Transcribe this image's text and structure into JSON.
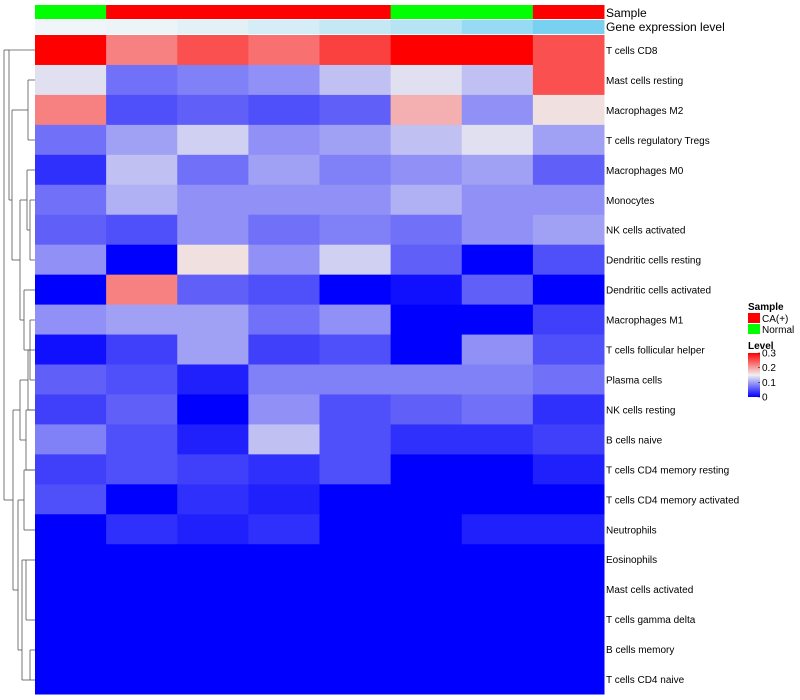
{
  "chart_data": {
    "type": "heatmap",
    "track_labels": [
      "Sample",
      "Gene expression level"
    ],
    "sample_groups": [
      "Normal",
      "CA(+)",
      "CA(+)",
      "CA(+)",
      "CA(+)",
      "Normal",
      "Normal",
      "CA(+)"
    ],
    "gene_expression": [
      0.02,
      0.04,
      0.1,
      0.2,
      0.3,
      0.4,
      0.6,
      0.8
    ],
    "gene_expression_colors": {
      "low": "#f2f6f8",
      "high": "#5bc8ef"
    },
    "rows": [
      "T cells CD8",
      "Mast cells resting",
      "Macrophages M2",
      "T cells regulatory  Tregs",
      "Macrophages M0",
      "Monocytes",
      "NK cells activated",
      "Dendritic cells resting",
      "Dendritic cells activated",
      "Macrophages M1",
      "T cells follicular helper",
      "Plasma cells",
      "NK cells resting",
      "B cells naive",
      "T cells CD4 memory resting",
      "T cells CD4 memory activated",
      "Neutrophils",
      "Eosinophils",
      "Mast cells activated",
      "T cells gamma delta",
      "B cells memory",
      "T cells CD4 naive"
    ],
    "values": [
      [
        0.3,
        0.22,
        0.25,
        0.23,
        0.26,
        0.3,
        0.3,
        0.25
      ],
      [
        0.14,
        0.07,
        0.08,
        0.09,
        0.12,
        0.14,
        0.12,
        0.25
      ],
      [
        0.22,
        0.05,
        0.06,
        0.05,
        0.06,
        0.19,
        0.09,
        0.16
      ],
      [
        0.07,
        0.1,
        0.13,
        0.09,
        0.1,
        0.12,
        0.14,
        0.1
      ],
      [
        0.03,
        0.12,
        0.07,
        0.1,
        0.08,
        0.09,
        0.1,
        0.06
      ],
      [
        0.07,
        0.11,
        0.09,
        0.09,
        0.09,
        0.11,
        0.09,
        0.09
      ],
      [
        0.06,
        0.05,
        0.09,
        0.07,
        0.08,
        0.07,
        0.09,
        0.1
      ],
      [
        0.09,
        0.0,
        0.16,
        0.09,
        0.13,
        0.06,
        0.0,
        0.05
      ],
      [
        0.0,
        0.22,
        0.06,
        0.05,
        0.0,
        0.01,
        0.06,
        0.0
      ],
      [
        0.09,
        0.1,
        0.1,
        0.07,
        0.09,
        0.0,
        0.0,
        0.04
      ],
      [
        0.01,
        0.04,
        0.1,
        0.04,
        0.05,
        0.0,
        0.09,
        0.05
      ],
      [
        0.06,
        0.05,
        0.02,
        0.08,
        0.08,
        0.08,
        0.08,
        0.07
      ],
      [
        0.04,
        0.06,
        0.0,
        0.09,
        0.05,
        0.06,
        0.07,
        0.03
      ],
      [
        0.08,
        0.05,
        0.02,
        0.12,
        0.05,
        0.03,
        0.03,
        0.04
      ],
      [
        0.04,
        0.05,
        0.04,
        0.03,
        0.05,
        0.0,
        0.0,
        0.02
      ],
      [
        0.05,
        0.0,
        0.03,
        0.02,
        0.0,
        0.0,
        0.0,
        0.0
      ],
      [
        0.0,
        0.03,
        0.02,
        0.03,
        0.0,
        0.0,
        0.02,
        0.02
      ],
      [
        0.0,
        0.0,
        0.0,
        0.0,
        0.0,
        0.0,
        0.0,
        0.0
      ],
      [
        0.0,
        0.0,
        0.0,
        0.0,
        0.0,
        0.0,
        0.0,
        0.0
      ],
      [
        0.0,
        0.0,
        0.0,
        0.0,
        0.0,
        0.0,
        0.0,
        0.0
      ],
      [
        0.0,
        0.0,
        0.0,
        0.0,
        0.0,
        0.0,
        0.0,
        0.0
      ],
      [
        0.0,
        0.0,
        0.0,
        0.0,
        0.0,
        0.0,
        0.0,
        0.0
      ]
    ],
    "color_scale": {
      "min": 0,
      "mid": 0.15,
      "max": 0.3,
      "low": "#0000ff",
      "mid_color": "#f0f0f0",
      "high": "#ff0000"
    },
    "legend": {
      "placement": "right",
      "sample_title": "Sample",
      "sample_entries": [
        {
          "label": "CA(+)",
          "color": "#ff0000"
        },
        {
          "label": "Normal",
          "color": "#00ff00"
        }
      ],
      "level_title": "Level",
      "level_ticks": [
        "0.3",
        "0.2",
        "0.1",
        "0"
      ],
      "level_tick_values": [
        0.3,
        0.2,
        0.1,
        0
      ]
    },
    "sample_colors": {
      "CA(+)": "#ff0000",
      "Normal": "#00ff00"
    },
    "row_dendrogram": true
  }
}
